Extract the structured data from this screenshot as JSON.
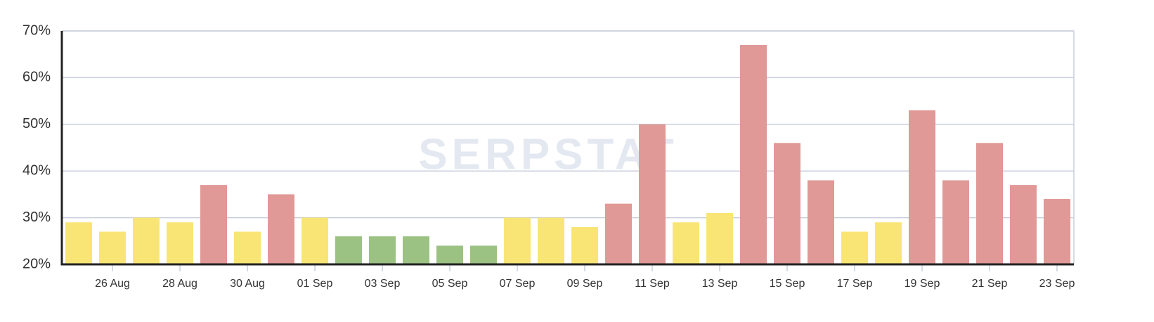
{
  "chart_data": {
    "type": "bar",
    "watermark": "SERPSTAT",
    "categories": [
      null,
      "26 Aug",
      null,
      "28 Aug",
      null,
      "30 Aug",
      null,
      "01 Sep",
      null,
      "03 Sep",
      null,
      "05 Sep",
      null,
      "07 Sep",
      null,
      "09 Sep",
      null,
      "11 Sep",
      null,
      "13 Sep",
      null,
      "15 Sep",
      null,
      "17 Sep",
      null,
      "19 Sep",
      null,
      "21 Sep",
      null,
      "23 Sep"
    ],
    "values": [
      29,
      27,
      30,
      29,
      37,
      27,
      35,
      30,
      26,
      26,
      26,
      24,
      24,
      30,
      30,
      28,
      33,
      50,
      29,
      31,
      67,
      46,
      38,
      27,
      29,
      53,
      38,
      46,
      37,
      34
    ],
    "colors": [
      "#f9e576",
      "#f9e576",
      "#f9e576",
      "#f9e576",
      "#e09996",
      "#f9e576",
      "#e09996",
      "#f9e576",
      "#9cc283",
      "#9cc283",
      "#9cc283",
      "#9cc283",
      "#9cc283",
      "#f9e576",
      "#f9e576",
      "#f9e576",
      "#e09996",
      "#e09996",
      "#f9e576",
      "#f9e576",
      "#e09996",
      "#e09996",
      "#e09996",
      "#f9e576",
      "#f9e576",
      "#e09996",
      "#e09996",
      "#e09996",
      "#e09996",
      "#e09996"
    ],
    "ylim": [
      20,
      70
    ],
    "yticks": [
      {
        "value": 20,
        "label": "20%"
      },
      {
        "value": 30,
        "label": "30%"
      },
      {
        "value": 40,
        "label": "40%"
      },
      {
        "value": 50,
        "label": "50%"
      },
      {
        "value": 60,
        "label": "60%"
      },
      {
        "value": 70,
        "label": "70%"
      }
    ],
    "grid": true
  }
}
